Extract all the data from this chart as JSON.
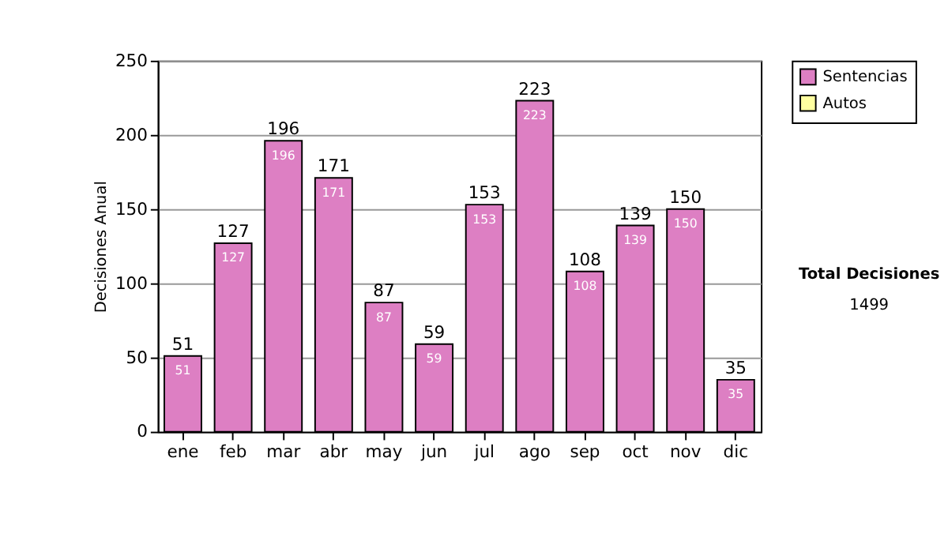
{
  "chart_data": {
    "type": "bar",
    "stacked": true,
    "ylabel": "Decisiones Anual",
    "categories": [
      "ene",
      "feb",
      "mar",
      "abr",
      "may",
      "jun",
      "jul",
      "ago",
      "sep",
      "oct",
      "nov",
      "dic"
    ],
    "series": [
      {
        "name": "Sentencias",
        "color": "#dd7fc3",
        "values": [
          51,
          127,
          196,
          171,
          87,
          59,
          153,
          223,
          108,
          139,
          150,
          35
        ],
        "value_labels": [
          "51",
          "127",
          "196",
          "171",
          "87",
          "59",
          "153",
          "223",
          "108",
          "139",
          "150",
          "35"
        ]
      },
      {
        "name": "Autos",
        "color": "#ffffa0",
        "values": [
          null,
          null,
          null,
          null,
          null,
          null,
          null,
          null,
          null,
          null,
          null,
          null
        ]
      }
    ],
    "totals": [
      "51",
      "127",
      "196",
      "171",
      "87",
      "59",
      "153",
      "223",
      "108",
      "139",
      "150",
      "35"
    ],
    "ylim": [
      0,
      250
    ],
    "yticks": [
      0,
      50,
      100,
      150,
      200,
      250
    ],
    "grid": "y",
    "legend": "right",
    "annotations": [
      "Total Decisiones",
      "1499"
    ]
  }
}
